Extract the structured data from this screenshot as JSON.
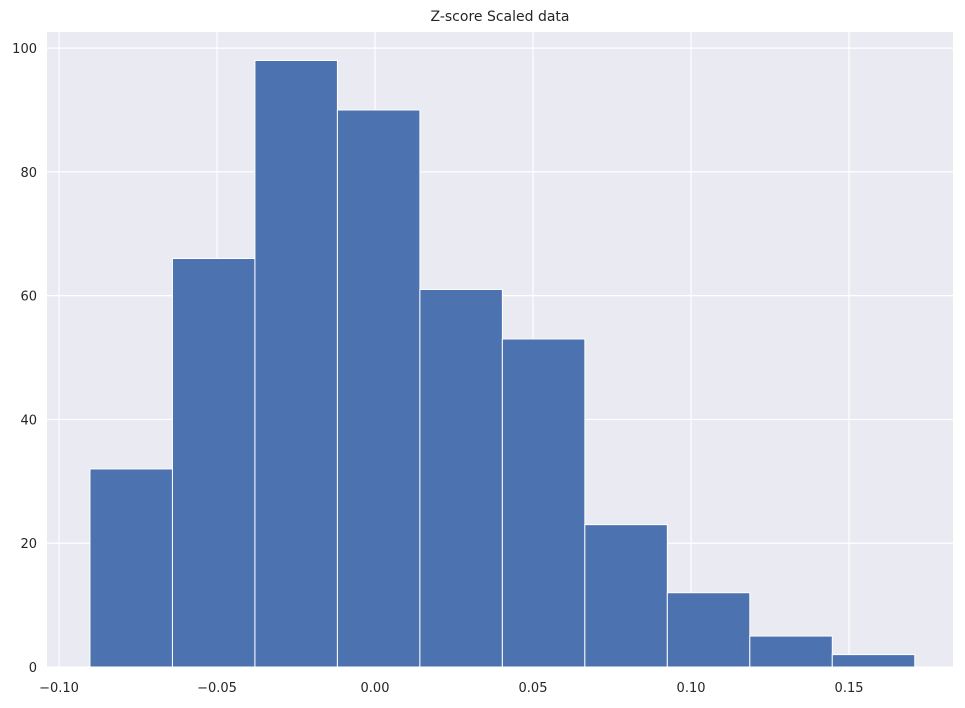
{
  "chart_data": {
    "type": "histogram",
    "title": "Z-score Scaled data",
    "bins": [
      -0.0902,
      -0.0641,
      -0.038,
      -0.0119,
      0.0142,
      0.0403,
      0.0664,
      0.0925,
      0.1186,
      0.1447,
      0.1708
    ],
    "values": [
      32,
      66,
      98,
      90,
      61,
      53,
      23,
      12,
      5,
      2
    ],
    "color": "#4c72b0",
    "xlim": [
      -0.1038,
      0.1829
    ],
    "xticks": [
      {
        "value": -0.1,
        "label": "−0.10"
      },
      {
        "value": -0.05,
        "label": "−0.05"
      },
      {
        "value": 0,
        "label": "0.00"
      },
      {
        "value": 0.05,
        "label": "0.05"
      },
      {
        "value": 0.1,
        "label": "0.10"
      },
      {
        "value": 0.15,
        "label": "0.15"
      }
    ],
    "ylim": [
      0,
      102.6
    ],
    "yticks": [
      0,
      20,
      40,
      60,
      80,
      100
    ],
    "grid": true
  }
}
